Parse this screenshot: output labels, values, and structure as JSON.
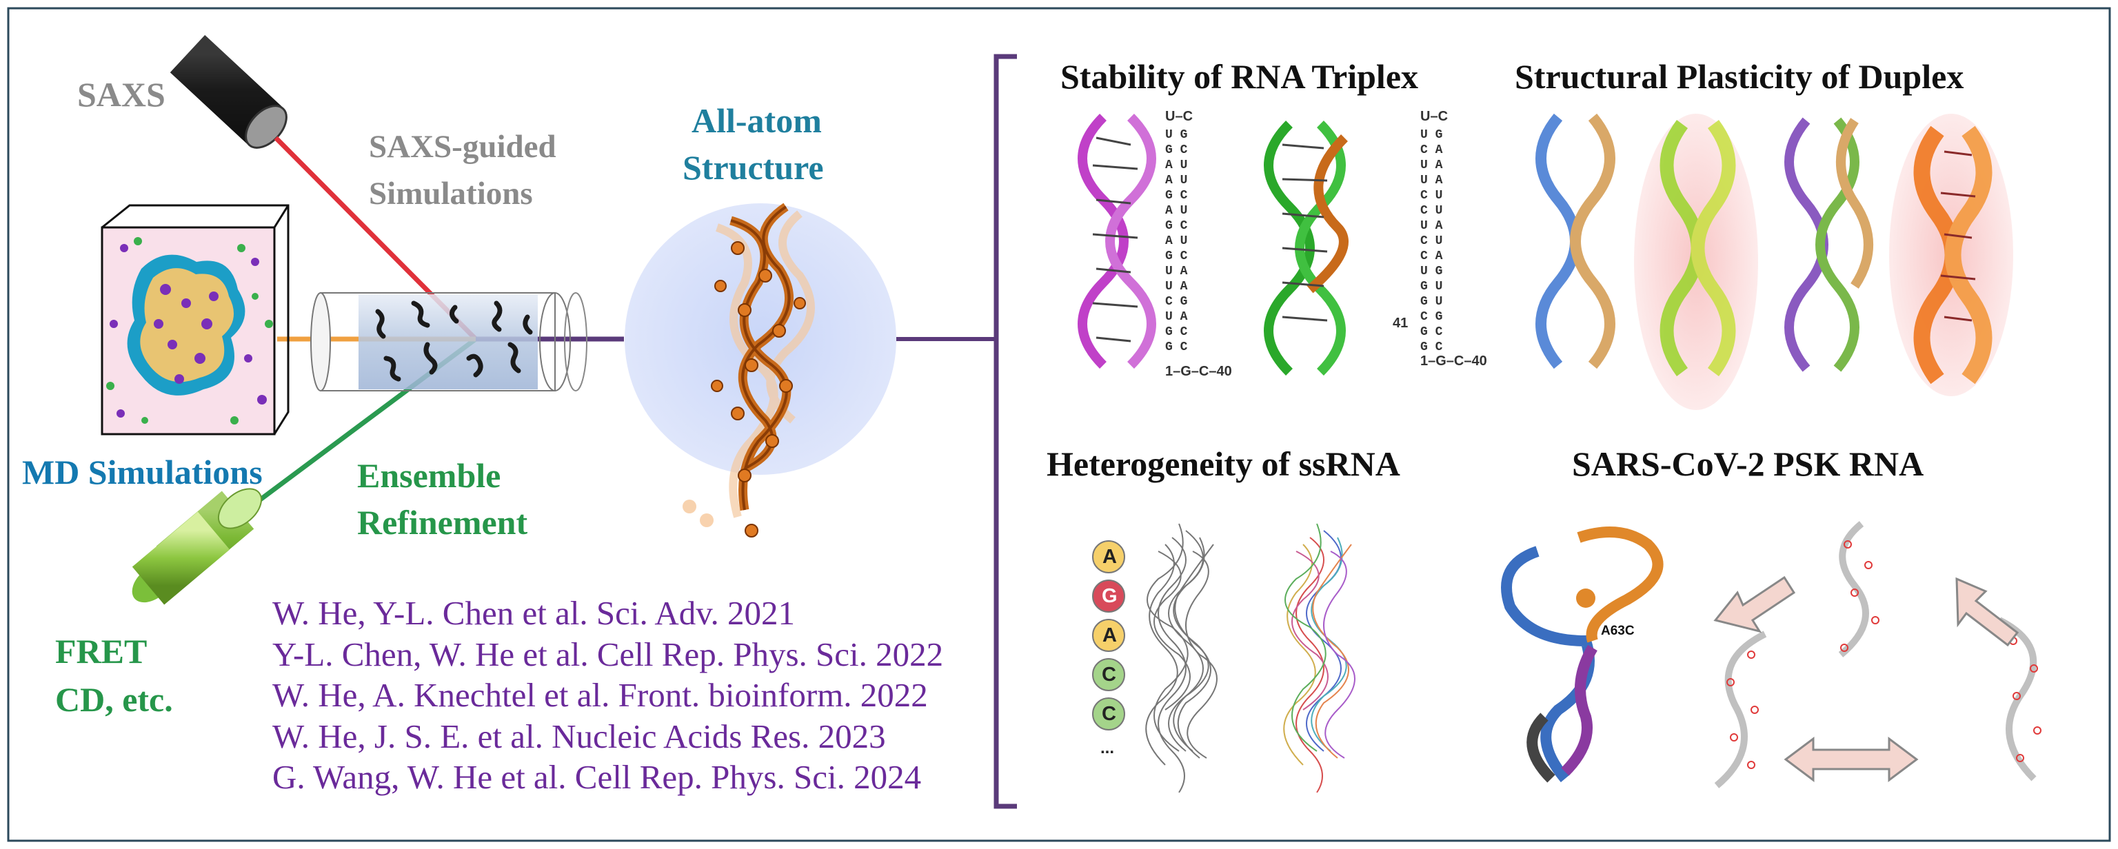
{
  "left": {
    "saxs_label": "SAXS",
    "saxs_guided_line1": "SAXS-guided",
    "saxs_guided_line2": "Simulations",
    "md_label": "MD Simulations",
    "ensemble_line1": "Ensemble",
    "ensemble_line2": "Refinement",
    "fret_line1": "FRET",
    "fret_line2": "CD, etc.",
    "allatom_line1": "All-atom",
    "allatom_line2": "Structure"
  },
  "references": [
    "W. He, Y-L. Chen et al. Sci. Adv. 2021",
    "Y-L. Chen, W. He et al. Cell Rep. Phys. Sci. 2022",
    "W. He, A. Knechtel et al. Front. bioinform. 2022",
    "W. He, J. S. E. et al. Nucleic Acids Res. 2023",
    "G. Wang, W. He et al. Cell Rep. Phys. Sci. 2024"
  ],
  "panels": {
    "triplex_title": "Stability of RNA Triplex",
    "duplex_title": "Structural Plasticity of Duplex",
    "ssrna_title": "Heterogeneity of ssRNA",
    "psk_title": "SARS-CoV-2 PSK RNA"
  },
  "ssrna": {
    "sequence": [
      "A",
      "G",
      "A",
      "C",
      "C"
    ],
    "ellipsis": "..."
  },
  "psk": {
    "mutation_label": "A63C"
  },
  "colors": {
    "saxs_beam": "#e0313a",
    "md_beam": "#f0a040",
    "ensemble_beam": "#2a9a50",
    "bracket": "#5a3a7a",
    "references": "#6a2a9a",
    "md_title": "#1479b0",
    "allatom_title": "#1f7f9e"
  }
}
